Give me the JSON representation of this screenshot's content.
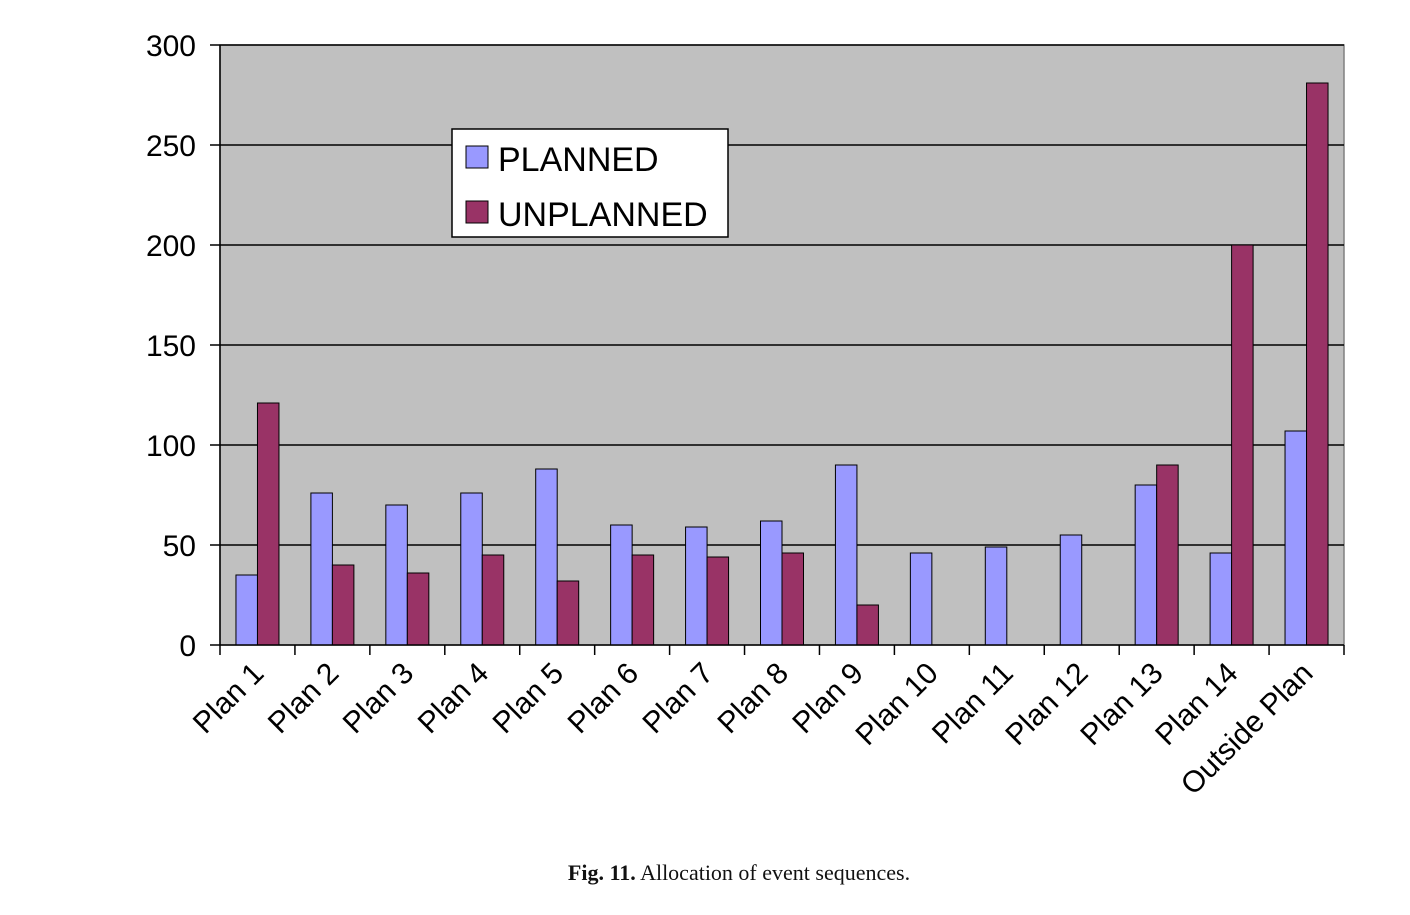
{
  "chart_data": {
    "type": "bar",
    "categories": [
      "Plan 1",
      "Plan 2",
      "Plan 3",
      "Plan 4",
      "Plan 5",
      "Plan 6",
      "Plan 7",
      "Plan 8",
      "Plan 9",
      "Plan 10",
      "Plan 11",
      "Plan 12",
      "Plan 13",
      "Plan 14",
      "Outside Plan"
    ],
    "series": [
      {
        "name": "PLANNED",
        "color": "#9999ff",
        "values": [
          35,
          76,
          70,
          76,
          88,
          60,
          59,
          62,
          90,
          46,
          49,
          55,
          80,
          46,
          107
        ]
      },
      {
        "name": "UNPLANNED",
        "color": "#993366",
        "values": [
          121,
          40,
          36,
          45,
          32,
          45,
          44,
          46,
          20,
          0,
          0,
          0,
          90,
          200,
          281
        ]
      }
    ],
    "ylim": [
      0,
      300
    ],
    "yticks": [
      0,
      50,
      100,
      150,
      200,
      250,
      300
    ],
    "grid": true,
    "legend_placement": "top-left",
    "plot_background": "#c0c0c0"
  },
  "caption": {
    "label": "Fig. 11.",
    "text": "Allocation of event sequences."
  }
}
